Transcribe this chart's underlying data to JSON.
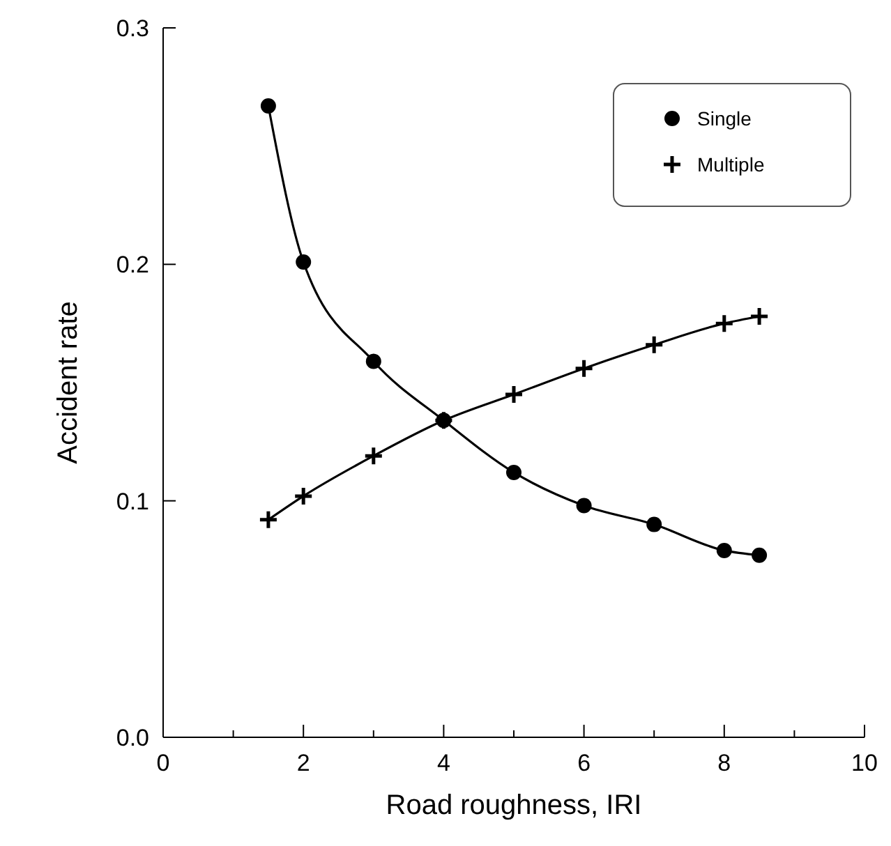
{
  "chart_data": {
    "type": "line",
    "xlabel": "Road roughness, IRI",
    "ylabel": "Accident rate",
    "xlim": [
      0,
      10
    ],
    "ylim": [
      0,
      0.3
    ],
    "xticks": [
      0,
      {
        "value": 1,
        "label": null
      },
      2,
      {
        "value": 3,
        "label": null
      },
      4,
      {
        "value": 5,
        "label": null
      },
      6,
      {
        "value": 7,
        "label": null
      },
      8,
      {
        "value": 9,
        "label": null
      },
      10
    ],
    "yticks": [
      {
        "value": 0,
        "label": "0.0"
      },
      0.1,
      0.2,
      0.3
    ],
    "x": [
      1.5,
      2,
      3,
      4,
      5,
      6,
      7,
      8,
      8.5
    ],
    "series": [
      {
        "name": "Single",
        "color": "#000000",
        "marker": "circle",
        "values": [
          0.267,
          0.201,
          0.159,
          0.134,
          0.112,
          0.098,
          0.09,
          0.079,
          0.077
        ]
      },
      {
        "name": "Multiple",
        "color": "#000000",
        "marker": "cross",
        "values": [
          0.092,
          0.102,
          0.119,
          0.134,
          0.145,
          0.156,
          0.166,
          0.175,
          0.178
        ]
      }
    ],
    "legend": "top right",
    "grid": false,
    "line_style": "solid"
  }
}
